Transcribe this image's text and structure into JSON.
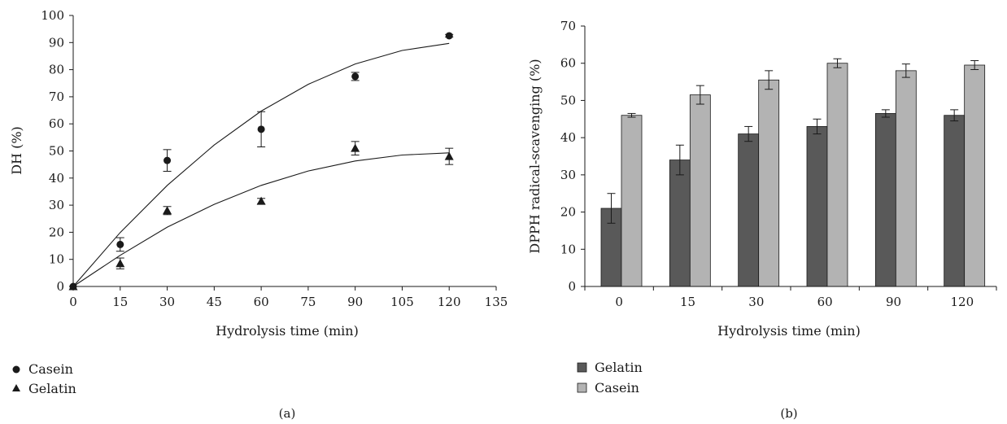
{
  "chart_data": [
    {
      "type": "scatter",
      "panel_label": "(a)",
      "xlabel": "Hydrolysis time (min)",
      "ylabel": "DH (%)",
      "xlim": [
        0,
        135
      ],
      "ylim": [
        0,
        100
      ],
      "xticks": [
        "0",
        "15",
        "30",
        "45",
        "60",
        "75",
        "90",
        "105",
        "120",
        "135"
      ],
      "yticks": [
        "0",
        "10",
        "20",
        "30",
        "40",
        "50",
        "60",
        "70",
        "80",
        "90",
        "100"
      ],
      "grid": false,
      "legend_position": "bottom-left",
      "series": [
        {
          "name": "Casein",
          "marker": "circle",
          "color": "#1a1a1a",
          "x": [
            0,
            15,
            30,
            60,
            90,
            120
          ],
          "y": [
            0,
            15.5,
            46.5,
            58,
            77.5,
            92.5
          ],
          "err": [
            0,
            2.5,
            4,
            6.5,
            1.5,
            0.5
          ],
          "trend": [
            [
              0,
              0
            ],
            [
              15,
              19.9
            ],
            [
              30,
              37.3
            ],
            [
              45,
              52.2
            ],
            [
              60,
              64.7
            ],
            [
              75,
              74.6
            ],
            [
              90,
              82.1
            ],
            [
              105,
              87.1
            ],
            [
              120,
              89.7
            ]
          ]
        },
        {
          "name": "Gelatin",
          "marker": "triangle",
          "color": "#1a1a1a",
          "x": [
            0,
            15,
            30,
            60,
            90,
            120
          ],
          "y": [
            0,
            8.5,
            28,
            31.5,
            51,
            48
          ],
          "err": [
            0,
            2,
            1.5,
            1,
            2.5,
            3
          ],
          "trend": [
            [
              0,
              0
            ],
            [
              15,
              11.5
            ],
            [
              30,
              21.9
            ],
            [
              45,
              30.3
            ],
            [
              60,
              37.3
            ],
            [
              75,
              42.6
            ],
            [
              90,
              46.3
            ],
            [
              105,
              48.5
            ],
            [
              120,
              49.3
            ]
          ]
        }
      ]
    },
    {
      "type": "bar",
      "panel_label": "(b)",
      "xlabel": "Hydrolysis time (min)",
      "ylabel": "DPPH radical-scavenging (%)",
      "categories": [
        "0",
        "15",
        "30",
        "60",
        "90",
        "120"
      ],
      "ylim": [
        0,
        70
      ],
      "yticks": [
        "0",
        "10",
        "20",
        "30",
        "40",
        "50",
        "60",
        "70"
      ],
      "grid": false,
      "legend_position": "bottom-left",
      "series": [
        {
          "name": "Gelatin",
          "color": "#595959",
          "values": [
            21,
            34,
            41,
            43,
            46.5,
            46
          ],
          "err": [
            4,
            4,
            2,
            2,
            1,
            1.5
          ]
        },
        {
          "name": "Casein",
          "color": "#b3b3b3",
          "values": [
            46,
            51.5,
            55.5,
            60,
            58,
            59.5
          ],
          "err": [
            0.5,
            2.5,
            2.5,
            1.2,
            1.8,
            1.2
          ]
        }
      ]
    }
  ]
}
